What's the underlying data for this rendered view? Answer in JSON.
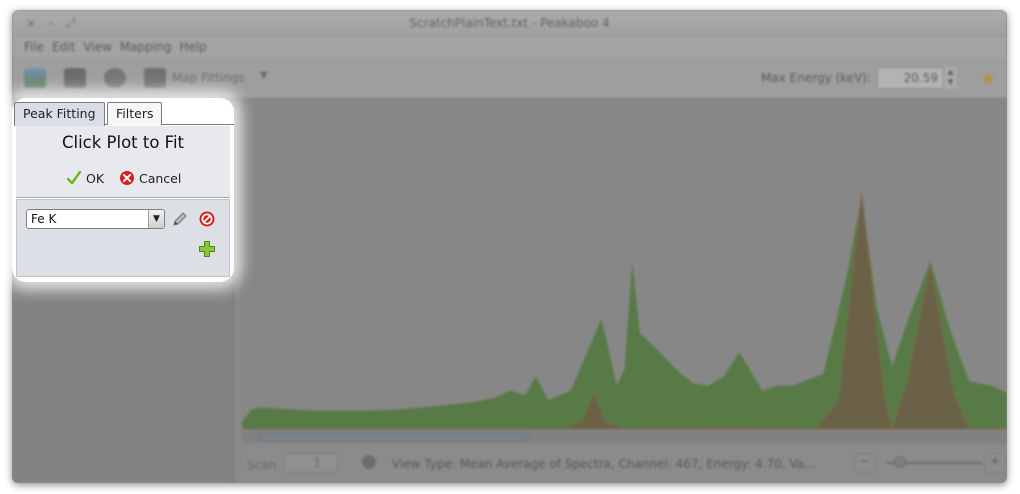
{
  "window": {
    "title": "ScratchPlainText.txt - Peakaboo 4",
    "controls": [
      "×",
      "–",
      "⤢"
    ]
  },
  "menu": [
    "File",
    "Edit",
    "View",
    "Mapping",
    "Help"
  ],
  "toolbar": {
    "map_fittings_label": "Map Fittings",
    "max_energy_label": "Max Energy (keV):",
    "max_energy_value": "20.59"
  },
  "side_panel": {
    "tabs": [
      "Peak Fitting",
      "Filters"
    ],
    "active_tab": "Peak Fitting",
    "prompt": "Click Plot to Fit",
    "ok_label": "OK",
    "cancel_label": "Cancel",
    "element_selected": "Fe K"
  },
  "status": {
    "scan_label": "Scan",
    "scan_value": "1",
    "view_info": "View Type: Mean Average of Spectra,  Channel: 467,  Energy: 4.70,  Va..."
  },
  "colors": {
    "spectrum": "#2f6e10",
    "fitting": "#5a3a10",
    "accent": "#d49a1e"
  },
  "chart_data": {
    "type": "area",
    "title": "",
    "xlabel": "",
    "ylabel": "",
    "channel_max": 1000,
    "series": [
      {
        "role": "spectrum",
        "x": [
          0,
          12,
          25,
          50,
          100,
          150,
          200,
          250,
          300,
          330,
          350,
          370,
          384,
          400,
          430,
          470,
          490,
          500,
          510,
          520,
          540,
          570,
          590,
          610,
          630,
          650,
          680,
          700,
          720,
          760,
          790,
          810,
          830,
          850,
          870,
          900,
          925,
          950,
          980,
          1000
        ],
        "y": [
          3,
          8,
          9,
          8.5,
          7.5,
          7.5,
          8,
          9.5,
          11,
          13,
          16,
          14,
          22,
          12,
          16,
          46,
          18,
          25,
          70,
          40,
          34,
          24,
          19,
          18,
          22,
          32,
          16,
          18,
          18,
          23,
          63,
          97,
          50,
          26,
          45,
          70,
          42,
          20,
          18,
          15
        ]
      },
      {
        "role": "fitting",
        "x": [
          0,
          420,
          445,
          460,
          475,
          500,
          640,
          750,
          780,
          810,
          840,
          850,
          870,
          900,
          930,
          950,
          1000
        ],
        "y": [
          0,
          0,
          3,
          15,
          3,
          0,
          1,
          0,
          12,
          98,
          12,
          0,
          20,
          68,
          15,
          0,
          0
        ]
      }
    ]
  }
}
